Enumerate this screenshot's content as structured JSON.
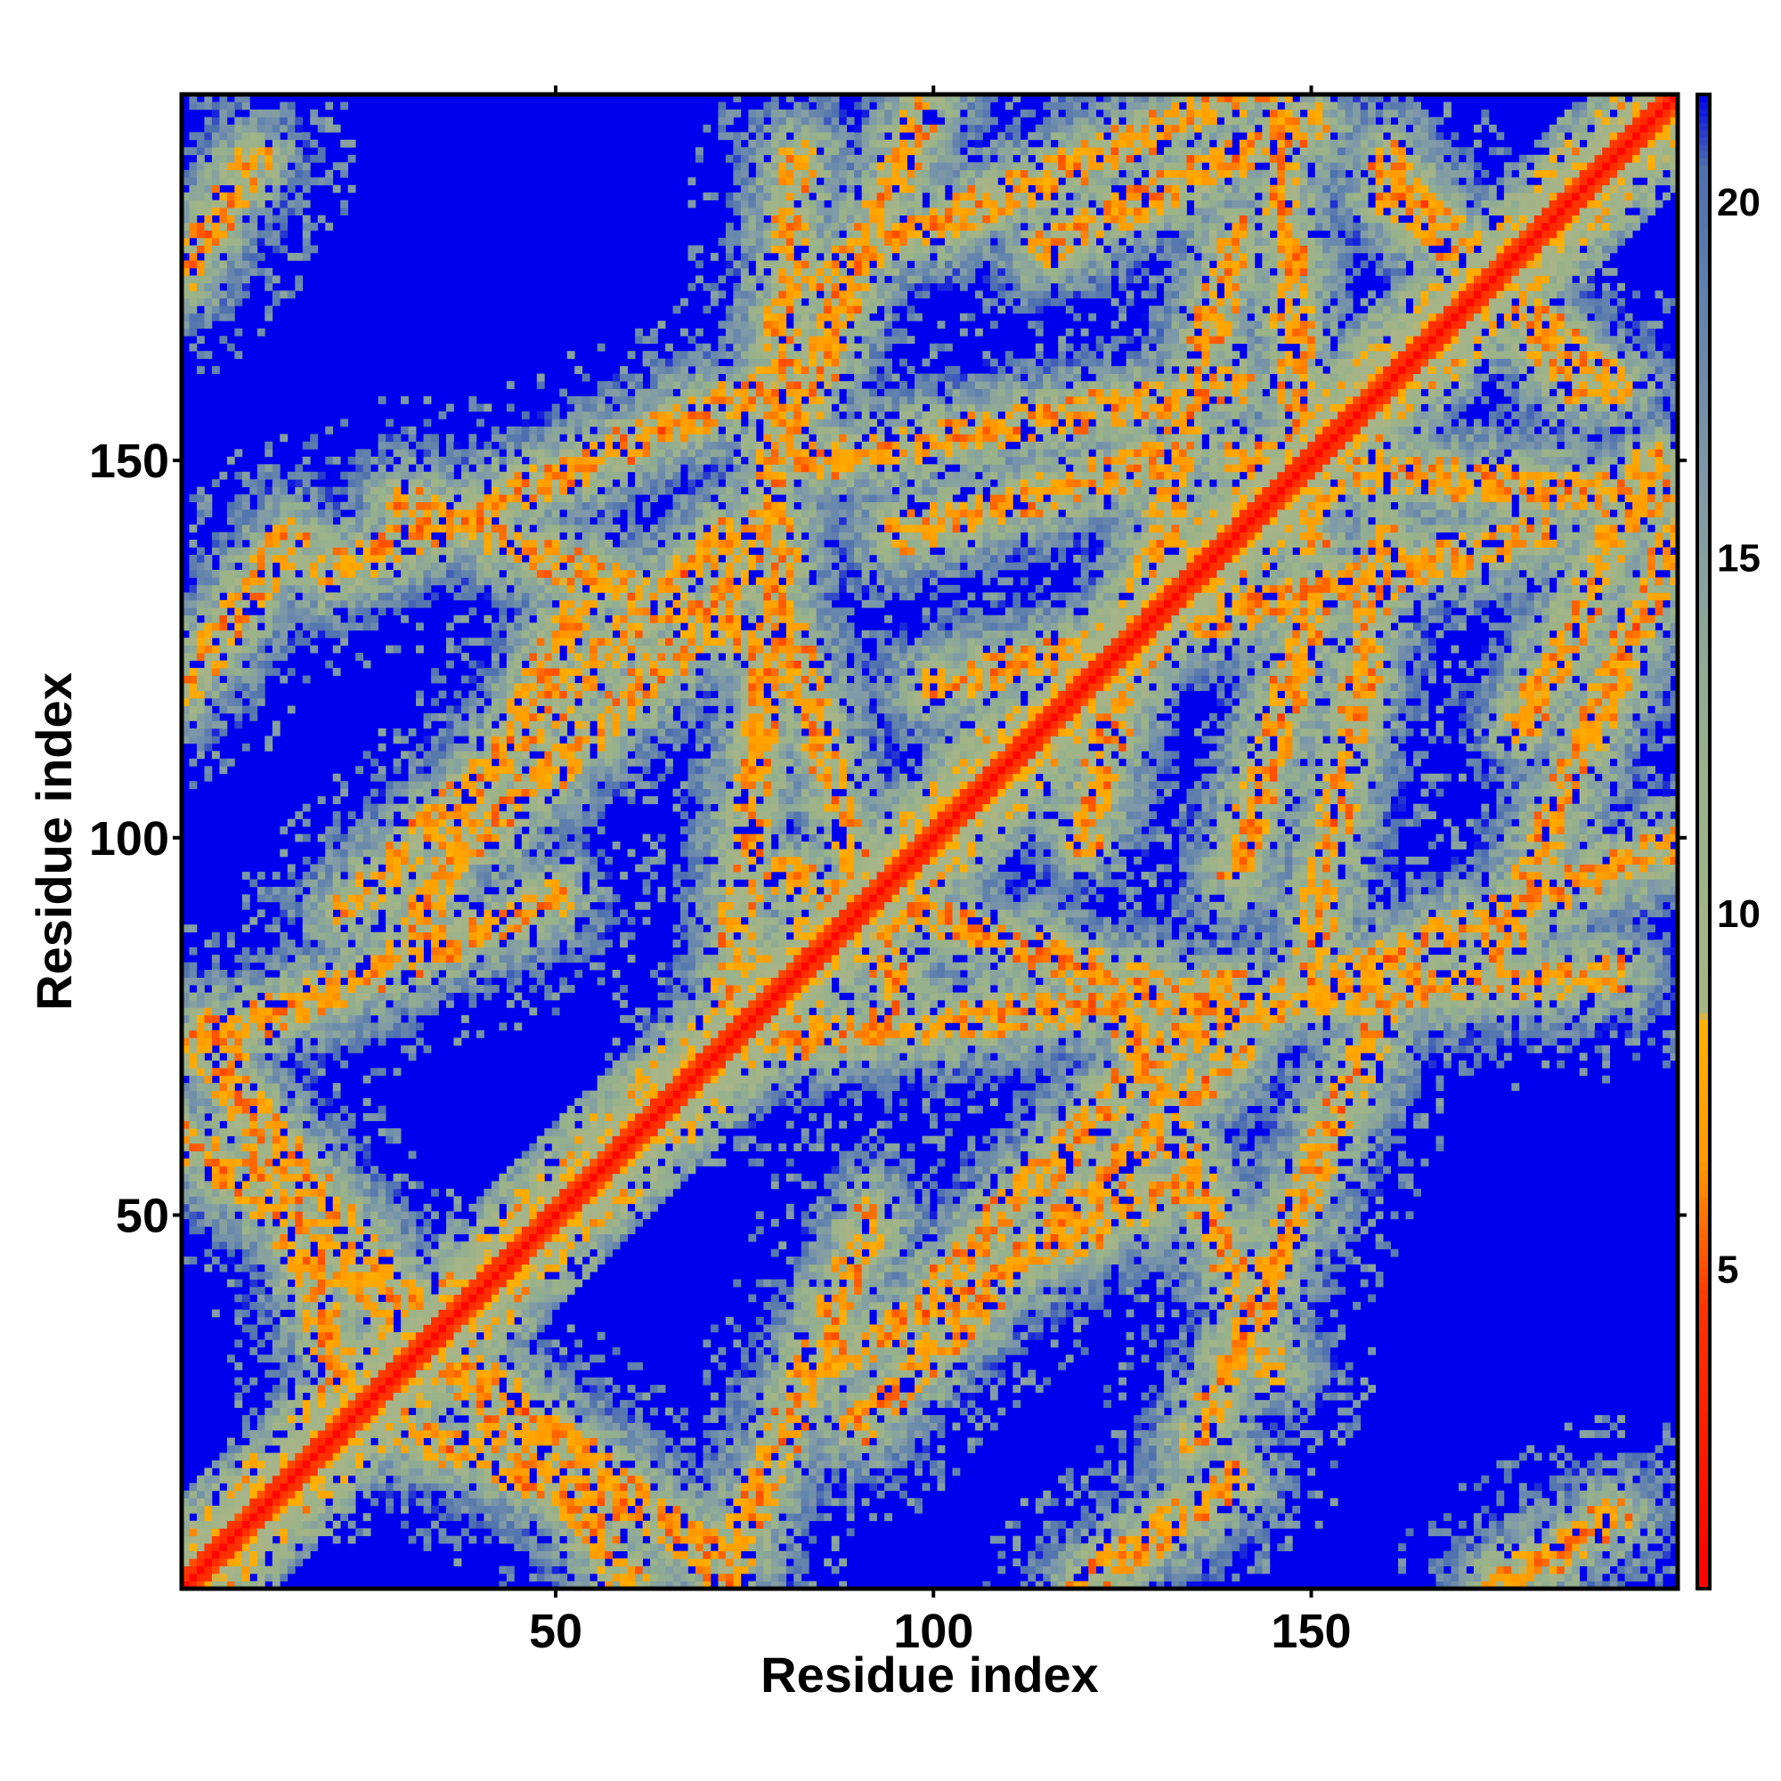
{
  "chart_data": {
    "type": "heatmap",
    "title": "",
    "xlabel": "Residue index",
    "ylabel": "Residue index",
    "xlim": [
      1,
      198
    ],
    "ylim": [
      1,
      198
    ],
    "x_ticks": [
      "50",
      "100",
      "150"
    ],
    "y_ticks": [
      "50",
      "100",
      "150"
    ],
    "x_tick_values": [
      50,
      100,
      150
    ],
    "y_tick_values": [
      50,
      100,
      150
    ],
    "n_residues": 198,
    "colorbar": {
      "range": [
        0.5,
        21.5
      ],
      "ticks": [
        "5",
        "10",
        "15",
        "20"
      ],
      "tick_values": [
        5,
        10,
        15,
        20
      ],
      "stops": [
        {
          "value": 0.5,
          "color": "#ff0000"
        },
        {
          "value": 4.5,
          "color": "#ff3300"
        },
        {
          "value": 6.5,
          "color": "#ff9900"
        },
        {
          "value": 8.5,
          "color": "#ffb000"
        },
        {
          "value": 8.6,
          "color": "#a9b487"
        },
        {
          "value": 12.0,
          "color": "#98b38a"
        },
        {
          "value": 16.0,
          "color": "#7f9aa8"
        },
        {
          "value": 20.5,
          "color": "#4d6fb0"
        },
        {
          "value": 21.5,
          "color": "#0000ee"
        }
      ]
    },
    "background_color": "#0000ee",
    "diagonal_color": "#ff0000",
    "contact_bands": [
      {
        "x": [
          20,
          75
        ],
        "y": [
          25,
          5
        ]
      },
      {
        "x": [
          1,
          70
        ],
        "y": [
          60,
          5
        ]
      },
      {
        "x": [
          40,
          72
        ],
        "y": [
          100,
          130
        ]
      },
      {
        "x": [
          22,
          72
        ],
        "y": [
          90,
          140
        ]
      },
      {
        "x": [
          1,
          50
        ],
        "y": [
          72,
          92
        ]
      },
      {
        "x": [
          72,
          100
        ],
        "y": [
          130,
          200
        ]
      },
      {
        "x": [
          72,
          80
        ],
        "y": [
          70,
          140
        ]
      },
      {
        "x": [
          80,
          130
        ],
        "y": [
          95,
          80
        ]
      },
      {
        "x": [
          125,
          145
        ],
        "y": [
          78,
          30
        ]
      },
      {
        "x": [
          85,
          135
        ],
        "y": [
          30,
          55
        ]
      },
      {
        "x": [
          135,
          160
        ],
        "y": [
          20,
          78
        ]
      },
      {
        "x": [
          140,
          190
        ],
        "y": [
          78,
          82
        ]
      },
      {
        "x": [
          175,
          198
        ],
        "y": [
          85,
          140
        ]
      },
      {
        "x": [
          140,
          198
        ],
        "y": [
          150,
          145
        ]
      },
      {
        "x": [
          120,
          140
        ],
        "y": [
          100,
          180
        ]
      },
      {
        "x": [
          115,
          150
        ],
        "y": [
          178,
          195
        ]
      },
      {
        "x": [
          160,
          185
        ],
        "y": [
          190,
          160
        ]
      },
      {
        "x": [
          150,
          160
        ],
        "y": [
          85,
          140
        ]
      },
      {
        "x": [
          95,
          130
        ],
        "y": [
          140,
          150
        ]
      },
      {
        "x": [
          1,
          15
        ],
        "y": [
          120,
          140
        ]
      },
      {
        "x": [
          1,
          10
        ],
        "y": [
          175,
          190
        ]
      }
    ]
  }
}
